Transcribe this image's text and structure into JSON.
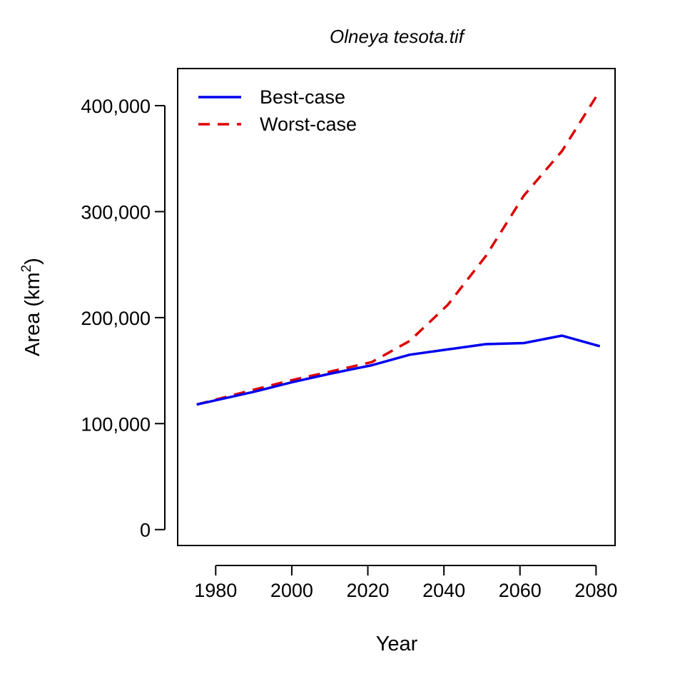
{
  "chart_data": {
    "type": "line",
    "title": "Olneya tesota.tif",
    "xlabel": "Year",
    "ylabel": "Area (km",
    "ylabel_sup": "2",
    "ylabel_close": ")",
    "xlim": [
      1970,
      2085
    ],
    "ylim": [
      -15000,
      435000
    ],
    "x_ticks": [
      1980,
      2000,
      2020,
      2040,
      2060,
      2080
    ],
    "y_ticks": [
      0,
      100000,
      200000,
      300000,
      400000
    ],
    "y_tick_labels": [
      "0",
      "100,000",
      "200,000",
      "300,000",
      "400,000"
    ],
    "legend_position": "top-left",
    "grid": false,
    "series": [
      {
        "name": "Best-case",
        "color": "#0000EE",
        "dash": "solid",
        "x": [
          1975,
          1990,
          2000,
          2010,
          2021,
          2031,
          2041,
          2051,
          2061,
          2071,
          2081
        ],
        "y": [
          118000,
          130000,
          139000,
          147000,
          155000,
          165000,
          170000,
          175000,
          176000,
          183000,
          173000
        ]
      },
      {
        "name": "Worst-case",
        "color": "#DD0000",
        "dash": "dashed",
        "x": [
          1975,
          1990,
          2000,
          2010,
          2021,
          2031,
          2041,
          2051,
          2061,
          2071,
          2081
        ],
        "y": [
          118000,
          132000,
          141000,
          149000,
          158000,
          178000,
          212000,
          258000,
          315000,
          357000,
          414000
        ]
      }
    ]
  }
}
